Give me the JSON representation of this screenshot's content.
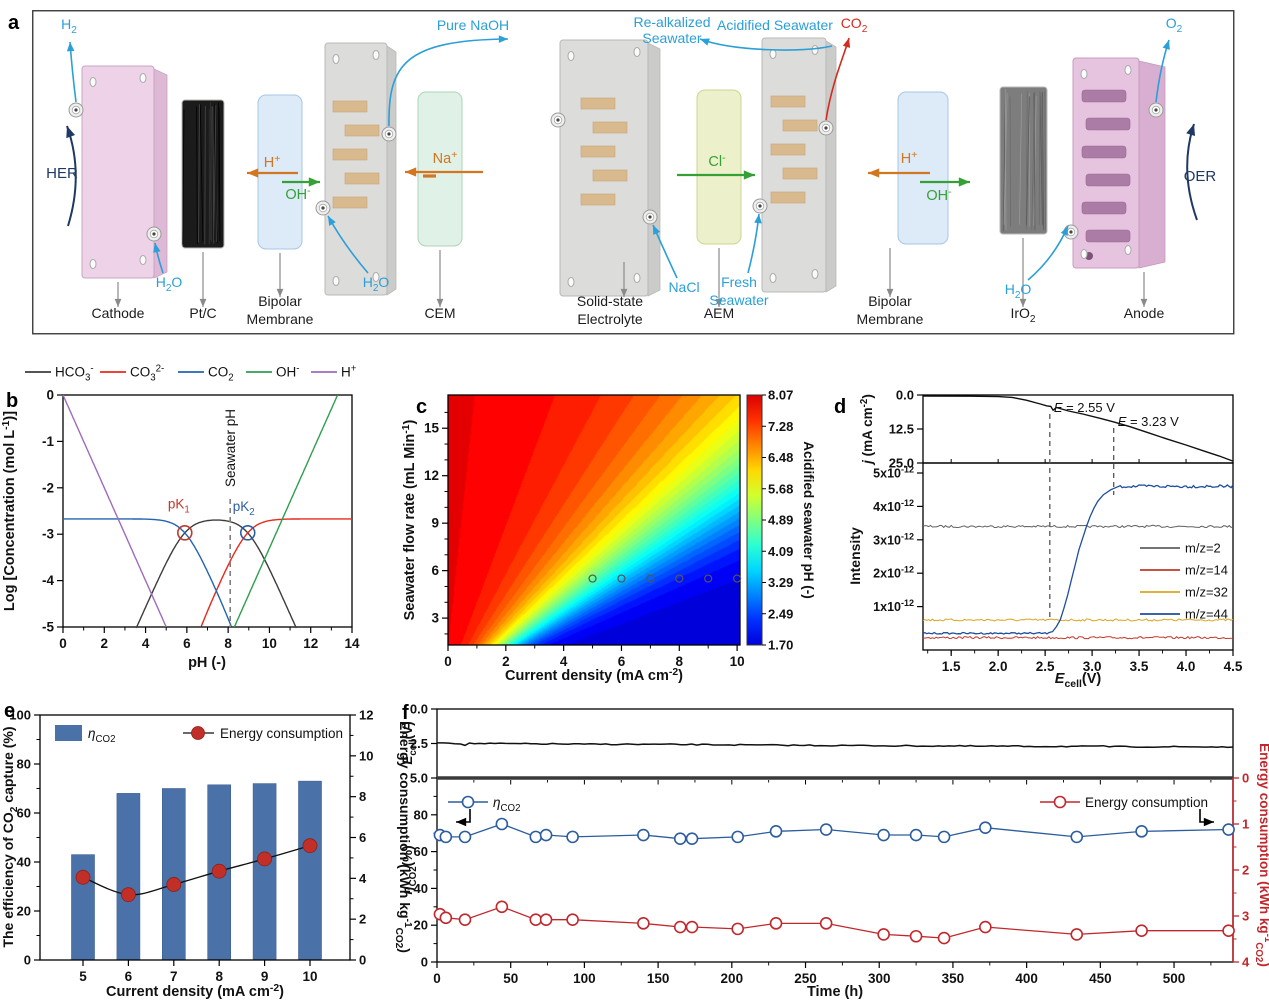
{
  "figure_labels": {
    "a": "a",
    "b": "b",
    "c": "c",
    "d": "d",
    "e": "e",
    "f": "f"
  },
  "palette": {
    "flow_blue": "#2b9fd8",
    "co2_red": "#d42a20",
    "ion_orange": "#d2761f",
    "ion_green": "#35a135",
    "reaction_navy": "#1f3864",
    "label_gray": "#8a8a8a",
    "cathode_pink": "#eed3e8",
    "anode_pink": "#e6c4e0",
    "plate_gray": "#dcdcda",
    "membrane_blue": "#dbe9f8",
    "cem_green": "#def0e6",
    "aem_yellow": "#ebf0c9",
    "ptc_black": "#1b1b1b",
    "iro2_gray": "#7d7d7d",
    "serpentine_tan": "#d9ba8e",
    "anode_channel": "#ab7ca6"
  },
  "panel_a": {
    "component_labels": [
      "Cathode",
      "Pt/C",
      "Bipolar\nMembrane",
      "CEM",
      "Solid-state\nElectrolyte",
      "AEM",
      "Bipolar\nMembrane",
      "IrO_{2}",
      "Anode"
    ],
    "flow_labels": {
      "h2": "H_{2}",
      "h2o_cathode": "H_{2}O",
      "pure_naoh": "Pure NaOH",
      "realk1": "Re-alkalized",
      "realk2": "Seawater",
      "acidified": "Acidified Seawater",
      "co2": "CO_{2}",
      "nacl": "NaCl",
      "fresh1": "Fresh",
      "fresh2": "Seawater",
      "h2o_bpm1": "H_{2}O",
      "h2o_anode": "H_{2}O",
      "o2": "O_{2}"
    },
    "ion_labels": {
      "bpm1_h": "H^{+}",
      "bpm1_oh": "OH^{-}",
      "cem_na": "Na^{+}",
      "aem_cl": "Cl^{-}",
      "bpm2_h": "H^{+}",
      "bpm2_oh": "OH^{-}"
    },
    "reaction_labels": {
      "her": "HER",
      "oer": "OER"
    }
  },
  "chart_data": [
    {
      "panel": "b",
      "type": "line",
      "xlabel": "pH (-)",
      "ylabel": "Log [Concentration (mol L^{-1})]",
      "xlim": [
        0,
        14
      ],
      "ylim": [
        -5,
        0
      ],
      "xticks": [
        0,
        2,
        4,
        6,
        8,
        10,
        12,
        14
      ],
      "yticks": [
        0,
        -1,
        -2,
        -3,
        -4,
        -5
      ],
      "legend": [
        {
          "label": "HCO_{3}^{-}",
          "color": "#3d3d3d"
        },
        {
          "label": "CO_{3}^{2-}",
          "color": "#e8291c"
        },
        {
          "label": "CO_{2}",
          "color": "#2065b0"
        },
        {
          "label": "OH^{-}",
          "color": "#2f9e4f"
        },
        {
          "label": "H^{+}",
          "color": "#9e6bbf"
        }
      ],
      "params": {
        "pK1": 5.9,
        "pK2": 8.95,
        "logCT": -2.67,
        "pKw": 13.3
      },
      "annotations": {
        "seawater_ph": 8.1,
        "seawater_label": "Seawater pH",
        "pk1": {
          "label": "pK_{1}",
          "x": 5.9,
          "y": -2.97,
          "color": "#c0392b"
        },
        "pk2": {
          "label": "pK_{2}",
          "x": 8.95,
          "y": -2.97,
          "color": "#2e5fa3"
        }
      }
    },
    {
      "panel": "c",
      "type": "heatmap",
      "xlabel": "Current density (mA cm^{-2})",
      "ylabel": "Seawater flow rate (mL Min^{-1})",
      "xlim": [
        0,
        10.1
      ],
      "ylim": [
        1.3,
        17.1
      ],
      "xticks": [
        0,
        2,
        4,
        6,
        8,
        10
      ],
      "yticks": [
        3,
        6,
        9,
        12,
        15
      ],
      "colorbar": {
        "label": "Acidified seawater pH (-)",
        "ticks": [
          "8.07",
          "7.28",
          "6.48",
          "5.68",
          "4.89",
          "4.09",
          "3.29",
          "2.49",
          "1.70"
        ],
        "max": 8.07,
        "min": 1.7
      },
      "markers": {
        "flow_rate": 5.5,
        "current_density": [
          5,
          6,
          7,
          8,
          9,
          10
        ]
      },
      "model": {
        "mid_a": 1.0,
        "mid_b": 0.7,
        "w0": 0.3,
        "w1": 0.18,
        "ph_max": 8.07,
        "ph_min": 1.7,
        "band": 0.21
      }
    },
    {
      "panel": "d",
      "type": "line",
      "xlabel": "*{E}_{cell}(V)",
      "xlim": [
        1.2,
        4.5
      ],
      "xticks": [
        "1.5",
        "2.0",
        "2.5",
        "3.0",
        "3.5",
        "4.0",
        "4.5"
      ],
      "top": {
        "ylabel": "*{j} (mA cm^{-2})",
        "yticks": [
          "0.0",
          "12.5",
          "25.0"
        ],
        "ylim": [
          0,
          25
        ],
        "inverted": true,
        "series": {
          "name": "j",
          "color": "#111111",
          "points": [
            [
              1.2,
              0.4
            ],
            [
              1.7,
              0.45
            ],
            [
              2.0,
              0.6
            ],
            [
              2.15,
              0.9
            ],
            [
              2.3,
              1.9
            ],
            [
              2.45,
              3.3
            ],
            [
              2.52,
              4.0
            ],
            [
              2.56,
              4.2
            ],
            [
              2.585,
              5.6
            ],
            [
              2.62,
              4.6
            ],
            [
              2.75,
              5.9
            ],
            [
              2.9,
              7.0
            ],
            [
              3.1,
              8.7
            ],
            [
              3.23,
              9.9
            ],
            [
              3.4,
              11.6
            ],
            [
              3.6,
              13.9
            ],
            [
              3.8,
              16.2
            ],
            [
              4.0,
              18.4
            ],
            [
              4.2,
              20.7
            ],
            [
              4.35,
              22.4
            ],
            [
              4.5,
              24.3
            ]
          ]
        }
      },
      "bottom": {
        "ylabel": "Intensity",
        "ytick_labels": [
          "1x10^{-12}",
          "2x10^{-12}",
          "3x10^{-12}",
          "4x10^{-12}",
          "5x10^{-12}"
        ],
        "ylim": [
          0,
          5.6
        ],
        "series": [
          {
            "name": "m/z=2",
            "color": "#606060",
            "level": 3.4
          },
          {
            "name": "m/z=14",
            "color": "#c0392b",
            "level": 0.07
          },
          {
            "name": "m/z=32",
            "color": "#d9a520",
            "level": 0.6
          },
          {
            "name": "m/z=44",
            "color": "#1f4e9c",
            "base": 0.2,
            "rise": [
              [
                2.58,
                0.25
              ],
              [
                2.62,
                0.4
              ],
              [
                2.66,
                0.6
              ],
              [
                2.7,
                0.95
              ],
              [
                2.74,
                1.35
              ],
              [
                2.78,
                1.8
              ],
              [
                2.82,
                2.25
              ],
              [
                2.86,
                2.7
              ],
              [
                2.9,
                3.05
              ],
              [
                2.94,
                3.4
              ],
              [
                2.98,
                3.7
              ],
              [
                3.02,
                3.95
              ],
              [
                3.06,
                4.15
              ],
              [
                3.12,
                4.35
              ],
              [
                3.2,
                4.5
              ],
              [
                3.3,
                4.62
              ]
            ],
            "plateau": 4.6
          }
        ]
      },
      "annotations": [
        {
          "label": "*{E} = 2.55 V",
          "x": 2.55
        },
        {
          "label": "*{E} = 3.23 V",
          "x": 3.23
        }
      ]
    },
    {
      "panel": "e",
      "type": "bar",
      "xlabel": "Current density (mA cm^{-2})",
      "categories": [
        5,
        6,
        7,
        8,
        9,
        10
      ],
      "bars": {
        "label": "*{η}_{CO2}",
        "color": "#4b72a8",
        "axis_label": "The efficiency of CO_{2} capture (%)",
        "ylim": [
          0,
          100
        ],
        "yticks": [
          0,
          20,
          40,
          60,
          80,
          100
        ],
        "values": [
          43,
          68,
          70,
          71.5,
          72,
          73
        ]
      },
      "line": {
        "label": "Energy consumption",
        "color": "#c13028",
        "axis_label": "Energy consumption (kWh kg^{-1}_{CO2})",
        "ylim": [
          0,
          12
        ],
        "yticks": [
          0,
          2,
          4,
          6,
          8,
          10,
          12
        ],
        "values": [
          4.05,
          3.2,
          3.7,
          4.35,
          4.95,
          5.6
        ]
      }
    },
    {
      "panel": "f",
      "type": "line",
      "xlabel": "Time (h)",
      "xlim": [
        0,
        540
      ],
      "xticks": [
        0,
        50,
        100,
        150,
        200,
        250,
        300,
        350,
        400,
        450,
        500
      ],
      "top": {
        "ylabel": "*{E}_{cell}(V)",
        "yticks": [
          "0.0",
          "2.5",
          "5.0"
        ],
        "ylim": [
          0,
          5
        ],
        "inverted": true,
        "series": {
          "name": "E_cell",
          "color": "#111111",
          "points": [
            [
              0,
              2.42
            ],
            [
              8,
              2.47
            ],
            [
              16,
              2.5
            ],
            [
              19,
              2.6
            ],
            [
              22,
              2.5
            ],
            [
              60,
              2.52
            ],
            [
              100,
              2.55
            ],
            [
              140,
              2.56
            ],
            [
              180,
              2.58
            ],
            [
              220,
              2.62
            ],
            [
              260,
              2.64
            ],
            [
              300,
              2.66
            ],
            [
              340,
              2.68
            ],
            [
              380,
              2.7
            ],
            [
              420,
              2.71
            ],
            [
              448,
              2.72
            ],
            [
              452,
              2.65
            ],
            [
              456,
              2.73
            ],
            [
              500,
              2.74
            ],
            [
              540,
              2.75
            ]
          ]
        }
      },
      "bottom": {
        "left_label": "*{η}_{CO2}(%)",
        "left_ticks": [
          0,
          20,
          40,
          60,
          80
        ],
        "left_lim": [
          0,
          100
        ],
        "right_label": "Energy consumption (kWh kg^{-1}_{CO2})",
        "right_ticks": [
          0,
          1,
          2,
          3,
          4
        ],
        "right_lim": [
          0,
          4
        ],
        "right_inverted": true,
        "time_h": [
          2,
          6,
          19,
          44,
          67,
          74,
          92,
          140,
          165,
          173,
          204,
          230,
          264,
          303,
          325,
          344,
          372,
          434,
          478,
          537
        ],
        "eta_co2_percent": [
          69,
          68,
          68,
          75,
          68,
          69,
          68,
          69,
          67,
          67,
          68,
          71,
          72,
          69,
          69,
          68,
          73,
          68,
          71,
          72
        ],
        "energy_kwh_per_kg": [
          2.96,
          3.04,
          3.08,
          2.8,
          3.08,
          3.08,
          3.08,
          3.16,
          3.24,
          3.24,
          3.28,
          3.16,
          3.16,
          3.4,
          3.44,
          3.48,
          3.24,
          3.4,
          3.32,
          3.32
        ],
        "legend": [
          {
            "label": "*{η}_{CO2}",
            "color": "#2c5d9e"
          },
          {
            "label": "Energy consumption",
            "color": "#c0282d"
          }
        ]
      }
    }
  ]
}
